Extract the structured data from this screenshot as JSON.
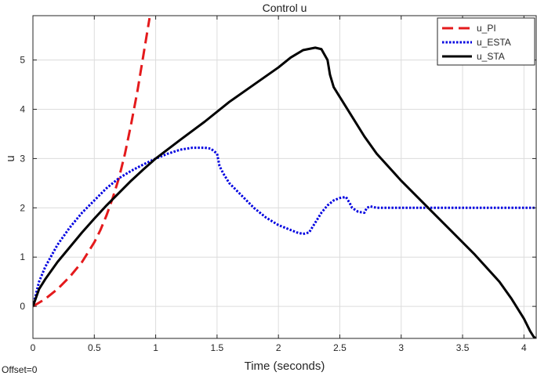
{
  "chart_data": {
    "type": "line",
    "title": "Control u",
    "xlabel": "Time (seconds)",
    "ylabel": "u",
    "xlim": [
      0,
      4.1
    ],
    "ylim": [
      -0.65,
      5.9
    ],
    "x_ticks": [
      0,
      0.5,
      1,
      1.5,
      2,
      2.5,
      3,
      3.5,
      4
    ],
    "x_tick_labels": [
      "0",
      "0.5",
      "1",
      "1.5",
      "2",
      "2.5",
      "3",
      "3.5",
      "4"
    ],
    "y_ticks": [
      0,
      1,
      2,
      3,
      4,
      5
    ],
    "y_tick_labels": [
      "0",
      "1",
      "2",
      "3",
      "4",
      "5"
    ],
    "grid": true,
    "legend_position": "top-right",
    "series": [
      {
        "name": "u_PI",
        "color": "#e41a1c",
        "style": "dashed",
        "x": [
          0,
          0.1,
          0.2,
          0.3,
          0.4,
          0.5,
          0.55,
          0.6,
          0.65,
          0.7,
          0.75,
          0.8,
          0.85,
          0.9,
          0.95
        ],
        "y": [
          0,
          0.15,
          0.35,
          0.6,
          0.9,
          1.3,
          1.55,
          1.85,
          2.2,
          2.6,
          3.1,
          3.7,
          4.35,
          5.1,
          5.85
        ]
      },
      {
        "name": "u_ESTA",
        "color": "#0000e0",
        "style": "dotted",
        "x": [
          0,
          0.05,
          0.1,
          0.2,
          0.3,
          0.4,
          0.5,
          0.6,
          0.7,
          0.8,
          0.9,
          1.0,
          1.1,
          1.2,
          1.3,
          1.4,
          1.45,
          1.5,
          1.52,
          1.55,
          1.6,
          1.7,
          1.8,
          1.9,
          2.0,
          2.1,
          2.15,
          2.2,
          2.25,
          2.3,
          2.35,
          2.4,
          2.45,
          2.5,
          2.55,
          2.58,
          2.6,
          2.63,
          2.65,
          2.7,
          2.72,
          2.75,
          2.8,
          3.0,
          3.5,
          4.0,
          4.1
        ],
        "y": [
          0,
          0.5,
          0.8,
          1.25,
          1.6,
          1.9,
          2.15,
          2.4,
          2.6,
          2.75,
          2.88,
          3.0,
          3.1,
          3.18,
          3.22,
          3.22,
          3.2,
          3.1,
          2.85,
          2.7,
          2.5,
          2.25,
          2.0,
          1.8,
          1.65,
          1.55,
          1.5,
          1.47,
          1.5,
          1.7,
          1.9,
          2.05,
          2.15,
          2.2,
          2.22,
          2.1,
          2.0,
          1.95,
          1.92,
          1.9,
          2.0,
          2.03,
          2.0,
          2.0,
          2.0,
          2.0,
          2.0
        ]
      },
      {
        "name": "u_STA",
        "color": "#000000",
        "style": "solid",
        "x": [
          0,
          0.05,
          0.1,
          0.2,
          0.3,
          0.4,
          0.5,
          0.6,
          0.7,
          0.8,
          0.9,
          1.0,
          1.2,
          1.4,
          1.6,
          1.8,
          2.0,
          2.1,
          2.2,
          2.3,
          2.35,
          2.4,
          2.42,
          2.45,
          2.5,
          2.6,
          2.7,
          2.8,
          3.0,
          3.2,
          3.4,
          3.6,
          3.8,
          3.9,
          4.0,
          4.05,
          4.08,
          4.1
        ],
        "y": [
          0,
          0.35,
          0.55,
          0.9,
          1.2,
          1.5,
          1.78,
          2.05,
          2.3,
          2.55,
          2.78,
          3.0,
          3.38,
          3.75,
          4.15,
          4.5,
          4.85,
          5.05,
          5.2,
          5.25,
          5.22,
          5.0,
          4.7,
          4.45,
          4.25,
          3.85,
          3.45,
          3.1,
          2.55,
          2.05,
          1.55,
          1.05,
          0.5,
          0.15,
          -0.25,
          -0.5,
          -0.62,
          -0.65
        ]
      }
    ]
  },
  "footer": {
    "offset_text": "Offset=0"
  }
}
